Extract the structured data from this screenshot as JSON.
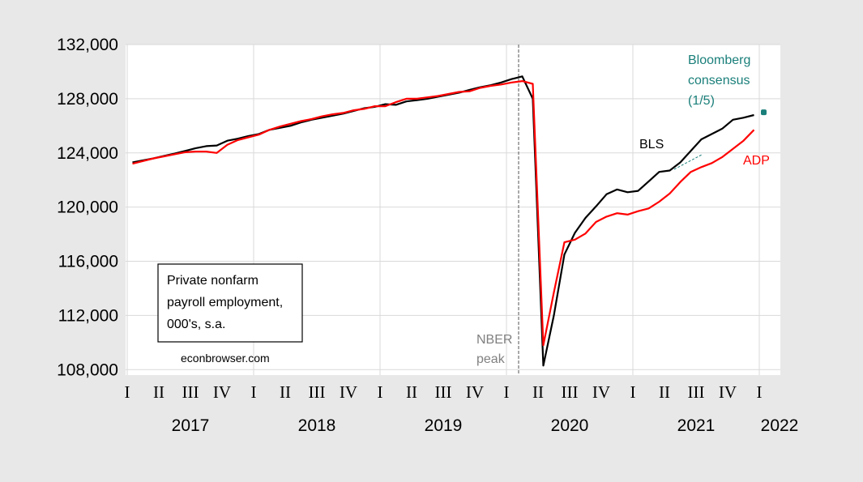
{
  "chart_data": {
    "type": "line",
    "y_ticks": [
      "108,000",
      "112,000",
      "116,000",
      "120,000",
      "124,000",
      "128,000",
      "132,000"
    ],
    "ylim": [
      107600,
      132000
    ],
    "x_quarter_labels": [
      "I",
      "II",
      "III",
      "IV",
      "I",
      "II",
      "III",
      "IV",
      "I",
      "II",
      "III",
      "IV",
      "I",
      "II",
      "III",
      "IV",
      "I",
      "II",
      "III",
      "IV",
      "I"
    ],
    "year_labels": [
      "2017",
      "2018",
      "2019",
      "2020",
      "2021",
      "2022"
    ],
    "grid": true,
    "series": [
      {
        "name": "BLS",
        "color": "#000000",
        "x": [
          "2017-01",
          "2017-02",
          "2017-03",
          "2017-04",
          "2017-05",
          "2017-06",
          "2017-07",
          "2017-08",
          "2017-09",
          "2017-10",
          "2017-11",
          "2017-12",
          "2018-01",
          "2018-02",
          "2018-03",
          "2018-04",
          "2018-05",
          "2018-06",
          "2018-07",
          "2018-08",
          "2018-09",
          "2018-10",
          "2018-11",
          "2018-12",
          "2019-01",
          "2019-02",
          "2019-03",
          "2019-04",
          "2019-05",
          "2019-06",
          "2019-07",
          "2019-08",
          "2019-09",
          "2019-10",
          "2019-11",
          "2019-12",
          "2020-01",
          "2020-02",
          "2020-03",
          "2020-04",
          "2020-05",
          "2020-06",
          "2020-07",
          "2020-08",
          "2020-09",
          "2020-10",
          "2020-11",
          "2020-12",
          "2021-01",
          "2021-02",
          "2021-03",
          "2021-04",
          "2021-05",
          "2021-06",
          "2021-07",
          "2021-08",
          "2021-09",
          "2021-10",
          "2021-11",
          "2021-12"
        ],
        "values": [
          123300,
          123450,
          123600,
          123780,
          123950,
          124150,
          124350,
          124500,
          124550,
          124900,
          125050,
          125250,
          125400,
          125700,
          125850,
          126000,
          126250,
          126450,
          126600,
          126750,
          126900,
          127100,
          127300,
          127400,
          127600,
          127550,
          127800,
          127900,
          128000,
          128150,
          128300,
          128450,
          128650,
          128850,
          129000,
          129200,
          129450,
          129650,
          128000,
          108300,
          112000,
          116500,
          118100,
          119200,
          120050,
          120950,
          121300,
          121100,
          121200,
          121900,
          122600,
          122700,
          123300,
          124150,
          125000,
          125400,
          125800,
          126450,
          126600,
          126800
        ]
      },
      {
        "name": "ADP",
        "color": "#ff0000",
        "x": [
          "2017-01",
          "2017-02",
          "2017-03",
          "2017-04",
          "2017-05",
          "2017-06",
          "2017-07",
          "2017-08",
          "2017-09",
          "2017-10",
          "2017-11",
          "2017-12",
          "2018-01",
          "2018-02",
          "2018-03",
          "2018-04",
          "2018-05",
          "2018-06",
          "2018-07",
          "2018-08",
          "2018-09",
          "2018-10",
          "2018-11",
          "2018-12",
          "2019-01",
          "2019-02",
          "2019-03",
          "2019-04",
          "2019-05",
          "2019-06",
          "2019-07",
          "2019-08",
          "2019-09",
          "2019-10",
          "2019-11",
          "2019-12",
          "2020-01",
          "2020-02",
          "2020-03",
          "2020-04",
          "2020-05",
          "2020-06",
          "2020-07",
          "2020-08",
          "2020-09",
          "2020-10",
          "2020-11",
          "2020-12",
          "2021-01",
          "2021-02",
          "2021-03",
          "2021-04",
          "2021-05",
          "2021-06",
          "2021-07",
          "2021-08",
          "2021-09",
          "2021-10",
          "2021-11",
          "2021-12"
        ],
        "values": [
          123200,
          123400,
          123600,
          123750,
          123900,
          124050,
          124100,
          124100,
          124000,
          124600,
          124950,
          125150,
          125350,
          125700,
          125950,
          126150,
          126350,
          126500,
          126700,
          126850,
          126950,
          127150,
          127250,
          127450,
          127450,
          127750,
          128000,
          128000,
          128100,
          128200,
          128350,
          128500,
          128550,
          128800,
          128950,
          129050,
          129200,
          129300,
          129100,
          109800,
          113700,
          117400,
          117600,
          118050,
          118900,
          119300,
          119550,
          119450,
          119700,
          119900,
          120400,
          121000,
          121850,
          122600,
          122950,
          123250,
          123700,
          124300,
          124900,
          125700
        ]
      }
    ],
    "consensus_point": {
      "x": "2021-12",
      "value": 127000,
      "color": "#1a7f7a"
    },
    "nber_peak": "2020-02",
    "annotations": {
      "bls_label": "BLS",
      "adp_label": "ADP",
      "bloomberg_line1": "Bloomberg",
      "bloomberg_line2": "consensus",
      "bloomberg_line3": "(1/5)",
      "nber_line1": "NBER",
      "nber_line2": "peak",
      "box_line1": "Private nonfarm",
      "box_line2": "payroll employment,",
      "box_line3": "000's, s.a.",
      "source": "econbrowser.com"
    },
    "colors": {
      "bls": "#000000",
      "adp": "#ff0000",
      "bloomberg": "#1a7f7a",
      "nber": "#808080",
      "grid": "#d9d9d9"
    }
  }
}
